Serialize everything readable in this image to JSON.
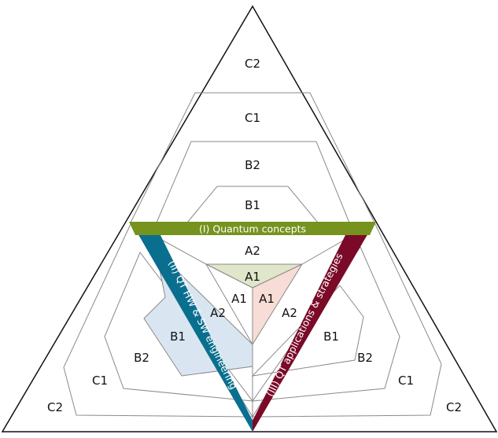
{
  "pillars": {
    "top": {
      "label": "(I) Quantum concepts",
      "color": "#76921f"
    },
    "left": {
      "label": "(II) QT HW & SW engineering",
      "color": "#0a6f8f"
    },
    "right": {
      "label": "(III) QT applications & strategies",
      "color": "#7a0a28"
    }
  },
  "fills": {
    "center_top": "#dfe6c9",
    "center_right": "#f7ddd5",
    "left_highlight": "#d9e6f1"
  },
  "levels": {
    "top": [
      "B1",
      "B2",
      "C1",
      "C2"
    ],
    "center": {
      "top": "A2",
      "inner_top": "A1",
      "inner_left": "A1",
      "inner_right": "A1",
      "left": "A2",
      "right": "A2"
    },
    "left": [
      "B1",
      "B2",
      "C1",
      "C2"
    ],
    "right": [
      "B1",
      "B2",
      "C1",
      "C2"
    ]
  }
}
